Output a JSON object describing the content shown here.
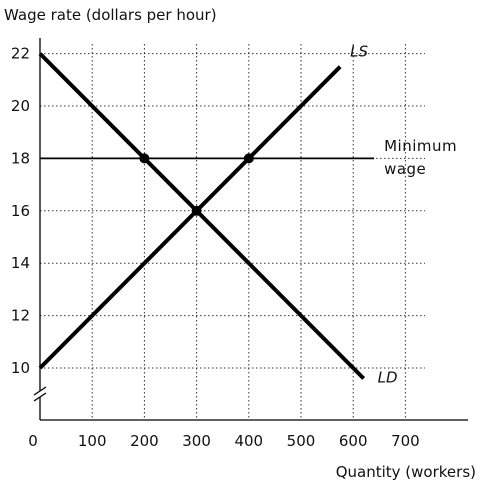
{
  "chart_data": {
    "type": "line",
    "ylabel": "Wage rate (dollars per hour)",
    "xlabel": "Quantity (workers)",
    "origin_label": "0",
    "xlim": [
      0,
      700
    ],
    "ylim": [
      10,
      22
    ],
    "x_ticks": [
      100,
      200,
      300,
      400,
      500,
      600,
      700
    ],
    "y_ticks": [
      10,
      12,
      14,
      16,
      18,
      20,
      22
    ],
    "grid": true,
    "y_axis_break": true,
    "series": [
      {
        "name": "LS",
        "points": [
          [
            0,
            10
          ],
          [
            575,
            21.5
          ]
        ]
      },
      {
        "name": "LD",
        "points": [
          [
            0,
            22
          ],
          [
            620,
            9.6
          ]
        ]
      }
    ],
    "hline": {
      "y": 18,
      "x_start": 0,
      "x_end": 640
    },
    "annotations": [
      {
        "text": "Minimum",
        "x": 640,
        "y": 18.2
      },
      {
        "text": "wage",
        "x": 640,
        "y": 17.4
      }
    ],
    "points": [
      {
        "x": 200,
        "y": 18
      },
      {
        "x": 400,
        "y": 18
      },
      {
        "x": 300,
        "y": 16
      }
    ]
  }
}
